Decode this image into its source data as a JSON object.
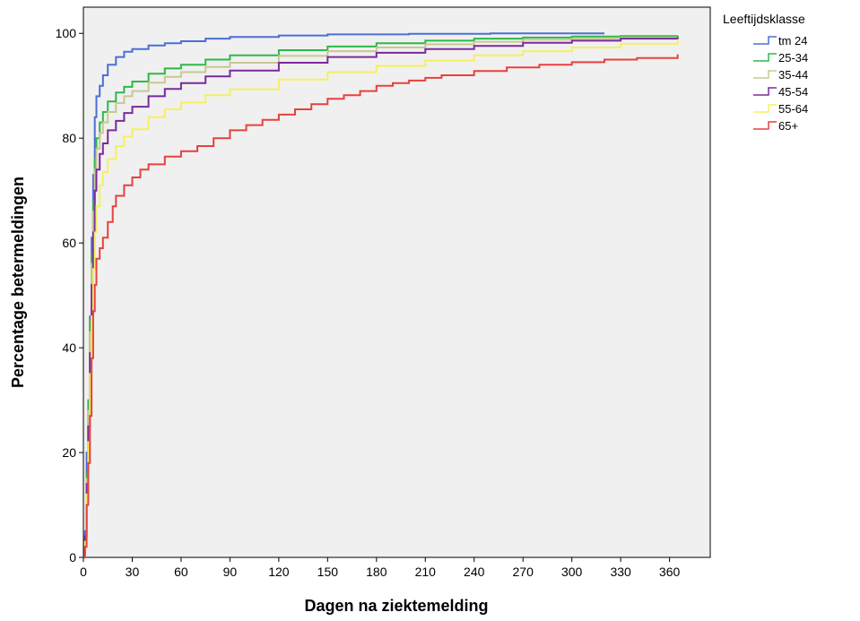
{
  "chart_data": {
    "type": "line",
    "step": true,
    "xlabel": "Dagen na ziektemelding",
    "ylabel": "Percentage betermeldingen",
    "xlim": [
      0,
      385
    ],
    "ylim": [
      0,
      105
    ],
    "xticks": [
      0,
      30,
      60,
      90,
      120,
      150,
      180,
      210,
      240,
      270,
      300,
      330,
      360
    ],
    "yticks": [
      0,
      20,
      40,
      60,
      80,
      100
    ],
    "grid": false,
    "background": "#f0f0f0",
    "legend": {
      "title": "Leeftijdsklasse",
      "position": "right"
    },
    "series": [
      {
        "name": "tm 24",
        "color": "#4a6fd6",
        "points": [
          [
            0,
            0
          ],
          [
            1,
            5
          ],
          [
            2,
            20
          ],
          [
            3,
            28
          ],
          [
            4,
            46
          ],
          [
            5,
            61
          ],
          [
            6,
            73
          ],
          [
            7,
            84
          ],
          [
            8,
            88
          ],
          [
            10,
            90
          ],
          [
            12,
            92
          ],
          [
            15,
            94
          ],
          [
            20,
            95.5
          ],
          [
            25,
            96.5
          ],
          [
            30,
            97
          ],
          [
            40,
            97.7
          ],
          [
            50,
            98.1
          ],
          [
            60,
            98.5
          ],
          [
            75,
            99
          ],
          [
            90,
            99.3
          ],
          [
            120,
            99.6
          ],
          [
            150,
            99.8
          ],
          [
            200,
            99.9
          ],
          [
            250,
            100
          ],
          [
            320,
            100
          ]
        ]
      },
      {
        "name": "25-34",
        "color": "#2db84a",
        "points": [
          [
            0,
            0
          ],
          [
            1,
            4
          ],
          [
            2,
            16
          ],
          [
            3,
            30
          ],
          [
            4,
            45
          ],
          [
            5,
            58
          ],
          [
            6,
            68
          ],
          [
            7,
            76
          ],
          [
            8,
            80
          ],
          [
            10,
            83
          ],
          [
            12,
            85
          ],
          [
            15,
            87
          ],
          [
            20,
            88.7
          ],
          [
            25,
            89.8
          ],
          [
            30,
            90.8
          ],
          [
            40,
            92.3
          ],
          [
            50,
            93.3
          ],
          [
            60,
            94
          ],
          [
            75,
            95
          ],
          [
            90,
            95.8
          ],
          [
            120,
            96.8
          ],
          [
            150,
            97.5
          ],
          [
            180,
            98.1
          ],
          [
            210,
            98.6
          ],
          [
            240,
            99
          ],
          [
            270,
            99.2
          ],
          [
            300,
            99.4
          ],
          [
            330,
            99.5
          ],
          [
            365,
            99.6
          ]
        ]
      },
      {
        "name": "35-44",
        "color": "#c8c890",
        "points": [
          [
            0,
            0
          ],
          [
            1,
            4
          ],
          [
            2,
            15
          ],
          [
            3,
            28
          ],
          [
            4,
            43
          ],
          [
            5,
            56
          ],
          [
            6,
            66
          ],
          [
            7,
            74
          ],
          [
            8,
            78
          ],
          [
            10,
            81
          ],
          [
            12,
            83
          ],
          [
            15,
            85
          ],
          [
            20,
            86.7
          ],
          [
            25,
            88
          ],
          [
            30,
            89
          ],
          [
            40,
            90.6
          ],
          [
            50,
            91.7
          ],
          [
            60,
            92.6
          ],
          [
            75,
            93.6
          ],
          [
            90,
            94.4
          ],
          [
            120,
            95.7
          ],
          [
            150,
            96.6
          ],
          [
            180,
            97.3
          ],
          [
            210,
            97.9
          ],
          [
            240,
            98.4
          ],
          [
            270,
            98.8
          ],
          [
            300,
            99
          ],
          [
            330,
            99.2
          ],
          [
            365,
            99.4
          ]
        ]
      },
      {
        "name": "45-54",
        "color": "#7a2a9a",
        "points": [
          [
            0,
            0
          ],
          [
            1,
            4
          ],
          [
            2,
            14
          ],
          [
            3,
            25
          ],
          [
            4,
            39
          ],
          [
            5,
            52
          ],
          [
            6,
            62
          ],
          [
            7,
            70
          ],
          [
            8,
            74
          ],
          [
            10,
            77
          ],
          [
            12,
            79
          ],
          [
            15,
            81.5
          ],
          [
            20,
            83.3
          ],
          [
            25,
            84.8
          ],
          [
            30,
            86
          ],
          [
            40,
            88
          ],
          [
            50,
            89.4
          ],
          [
            60,
            90.5
          ],
          [
            75,
            91.8
          ],
          [
            90,
            92.9
          ],
          [
            120,
            94.4
          ],
          [
            150,
            95.5
          ],
          [
            180,
            96.3
          ],
          [
            210,
            97
          ],
          [
            240,
            97.6
          ],
          [
            270,
            98.2
          ],
          [
            300,
            98.6
          ],
          [
            330,
            99
          ],
          [
            365,
            99.3
          ]
        ]
      },
      {
        "name": "55-64",
        "color": "#f5f060",
        "points": [
          [
            0,
            0
          ],
          [
            1,
            3
          ],
          [
            2,
            12
          ],
          [
            3,
            22
          ],
          [
            4,
            35
          ],
          [
            5,
            46
          ],
          [
            6,
            55
          ],
          [
            7,
            62
          ],
          [
            8,
            67
          ],
          [
            10,
            71
          ],
          [
            12,
            73.5
          ],
          [
            15,
            76
          ],
          [
            20,
            78.5
          ],
          [
            25,
            80.3
          ],
          [
            30,
            81.7
          ],
          [
            40,
            84
          ],
          [
            50,
            85.5
          ],
          [
            60,
            86.8
          ],
          [
            75,
            88.2
          ],
          [
            90,
            89.3
          ],
          [
            120,
            91.2
          ],
          [
            150,
            92.6
          ],
          [
            180,
            93.8
          ],
          [
            210,
            94.8
          ],
          [
            240,
            95.8
          ],
          [
            270,
            96.6
          ],
          [
            300,
            97.3
          ],
          [
            330,
            98
          ],
          [
            365,
            98.9
          ]
        ]
      },
      {
        "name": "65+",
        "color": "#e8413c",
        "points": [
          [
            0,
            0
          ],
          [
            1,
            2
          ],
          [
            2,
            10
          ],
          [
            3,
            18
          ],
          [
            4,
            27
          ],
          [
            5,
            38
          ],
          [
            6,
            47
          ],
          [
            7,
            52
          ],
          [
            8,
            57
          ],
          [
            10,
            59
          ],
          [
            12,
            61
          ],
          [
            15,
            64
          ],
          [
            18,
            67
          ],
          [
            20,
            69
          ],
          [
            25,
            71
          ],
          [
            30,
            72.5
          ],
          [
            35,
            74
          ],
          [
            40,
            75
          ],
          [
            50,
            76.5
          ],
          [
            60,
            77.5
          ],
          [
            70,
            78.5
          ],
          [
            80,
            80
          ],
          [
            90,
            81.5
          ],
          [
            100,
            82.5
          ],
          [
            110,
            83.5
          ],
          [
            120,
            84.5
          ],
          [
            130,
            85.5
          ],
          [
            140,
            86.5
          ],
          [
            150,
            87.5
          ],
          [
            160,
            88.2
          ],
          [
            170,
            89
          ],
          [
            180,
            90
          ],
          [
            190,
            90.5
          ],
          [
            200,
            91
          ],
          [
            210,
            91.5
          ],
          [
            220,
            92
          ],
          [
            240,
            92.8
          ],
          [
            260,
            93.5
          ],
          [
            280,
            94
          ],
          [
            300,
            94.5
          ],
          [
            320,
            95
          ],
          [
            340,
            95.3
          ],
          [
            365,
            96
          ]
        ]
      }
    ]
  }
}
